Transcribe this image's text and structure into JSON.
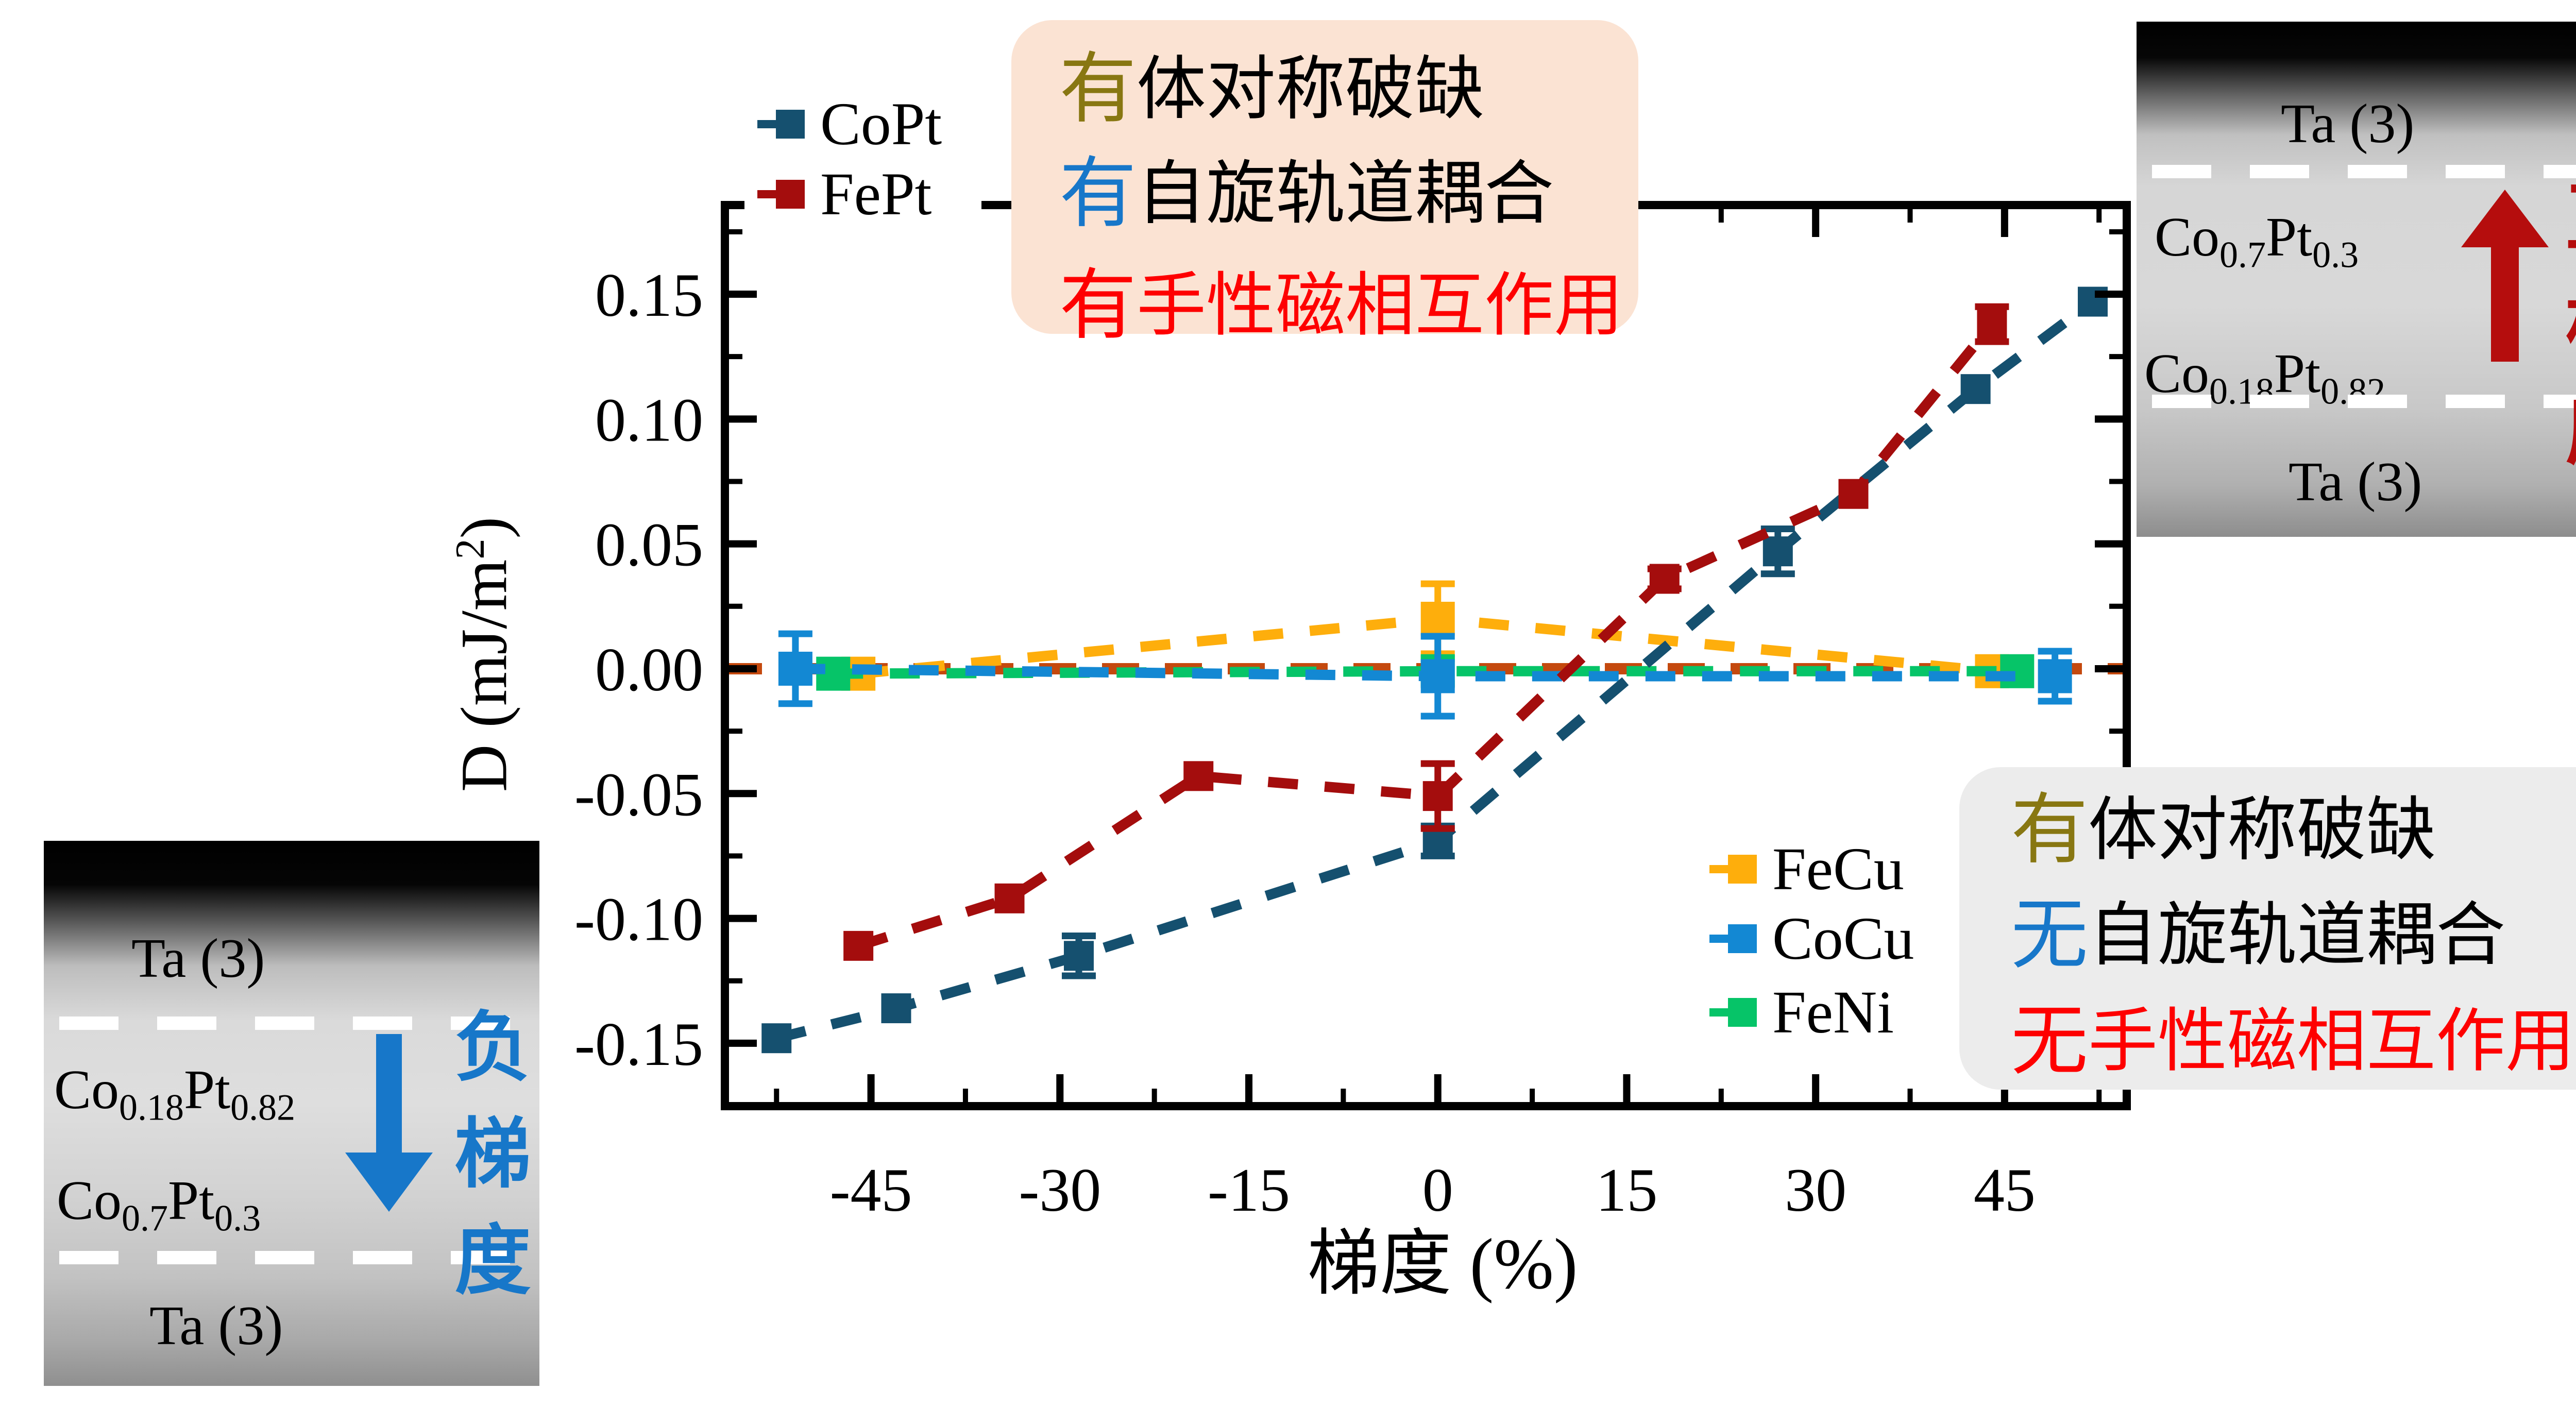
{
  "chart_data": {
    "type": "line",
    "title": "",
    "xlabel": "梯度 (%)",
    "ylabel": "D (mJ/m2)",
    "xlim": [
      -56.6,
      54.7
    ],
    "ylim": [
      -0.1752,
      0.1857
    ],
    "xticks": [
      -45,
      -30,
      -15,
      0,
      15,
      30,
      45
    ],
    "yticks": [
      0.15,
      0.1,
      0.05,
      0.0,
      -0.05,
      -0.1,
      -0.15
    ],
    "x_minor_step": 7.5,
    "y_minor_step": 0.025,
    "grid": false,
    "zero_line": {
      "y": 0,
      "color": "#c4490e"
    },
    "series": [
      {
        "name": "FeCu",
        "color": "#feae0c",
        "msize": 66,
        "x": [
          -46,
          0,
          44
        ],
        "y": [
          -0.002,
          0.02,
          -0.001
        ],
        "yerr": [
          0,
          0.014,
          0
        ]
      },
      {
        "name": "FeNi",
        "color": "#06c468",
        "msize": 66,
        "x": [
          -48,
          0,
          46
        ],
        "y": [
          -0.002,
          -0.001,
          -0.001
        ],
        "yerr": [
          0,
          0.005,
          0
        ]
      },
      {
        "name": "CoCu",
        "color": "#1388d3",
        "msize": 66,
        "x": [
          -51,
          0,
          49
        ],
        "y": [
          0.0,
          -0.003,
          -0.003
        ],
        "yerr": [
          0.014,
          0.016,
          0.01
        ]
      },
      {
        "name": "CoPt",
        "color": "#15506f",
        "msize": 58,
        "x": [
          -52.5,
          -43,
          -28.5,
          0,
          27,
          42.7,
          52
        ],
        "y": [
          -0.148,
          -0.136,
          -0.115,
          -0.069,
          0.047,
          0.112,
          0.147
        ],
        "yerr": [
          0,
          0,
          0.008,
          0.006,
          0.009,
          0,
          0
        ]
      },
      {
        "name": "FePt",
        "color": "#a40d0d",
        "msize": 58,
        "x": [
          -46,
          -34,
          -19,
          0,
          18,
          33,
          44
        ],
        "y": [
          -0.111,
          -0.092,
          -0.043,
          -0.051,
          0.036,
          0.07,
          0.138
        ],
        "yerr": [
          0,
          0,
          0,
          0.013,
          0.004,
          0,
          0.007
        ]
      }
    ],
    "legend_position": "upper-left and lower-right inside axes"
  },
  "axis": {
    "xlabel": "梯度 (%)",
    "ylabel_prefix": "D (mJ/m",
    "ylabel_sup": "2",
    "ylabel_suffix": ")"
  },
  "legend_top": {
    "items": [
      {
        "label": "CoPt",
        "color": "#15506f"
      },
      {
        "label": "FePt",
        "color": "#a40d0d"
      }
    ]
  },
  "legend_inner": {
    "items": [
      {
        "label": "FeCu",
        "color": "#feae0c"
      },
      {
        "label": "CoCu",
        "color": "#1388d3"
      },
      {
        "label": "FeNi",
        "color": "#06c468"
      }
    ]
  },
  "box_top": {
    "bg": "#fbe3d3",
    "rows": [
      {
        "lead": "有",
        "lead_color": "#887712",
        "text": "体对称破缺",
        "text_color": "#000000"
      },
      {
        "lead": "有",
        "lead_color": "#1777c9",
        "text": "自旋轨道耦合",
        "text_color": "#000000"
      },
      {
        "lead": "有",
        "lead_color": "#fe0000",
        "text": "手性磁相互作用",
        "text_color": "#fe0000"
      }
    ]
  },
  "box_bottom": {
    "bg": "#ececec",
    "rows": [
      {
        "lead": "有",
        "lead_color": "#887712",
        "text": "体对称破缺",
        "text_color": "#000000"
      },
      {
        "lead": "无",
        "lead_color": "#1777c9",
        "text": "自旋轨道耦合",
        "text_color": "#000000"
      },
      {
        "lead": "无",
        "lead_color": "#fe0000",
        "text": "手性磁相互作用",
        "text_color": "#fe0000"
      }
    ]
  },
  "inset_left": {
    "layers": {
      "top": [
        "Ta (3)"
      ],
      "mid1": [
        "Co",
        "0.18",
        "Pt",
        "0.82"
      ],
      "mid2": [
        "Co",
        "0.7",
        "Pt",
        "0.3"
      ],
      "bottom": [
        "Ta (3)"
      ]
    },
    "arrow_color": "#1777c9",
    "side_label": "负梯度",
    "side_color": "#1777c9"
  },
  "inset_right": {
    "layers": {
      "top": [
        "Ta (3)"
      ],
      "mid1": [
        "Co",
        "0.7",
        "Pt",
        "0.3"
      ],
      "mid2": [
        "Co",
        "0.18",
        "Pt",
        "0.82"
      ],
      "bottom": [
        "Ta (3)"
      ]
    },
    "arrow_color": "#b50d0d",
    "side_label": "正梯度",
    "side_color": "#b50d0d"
  }
}
